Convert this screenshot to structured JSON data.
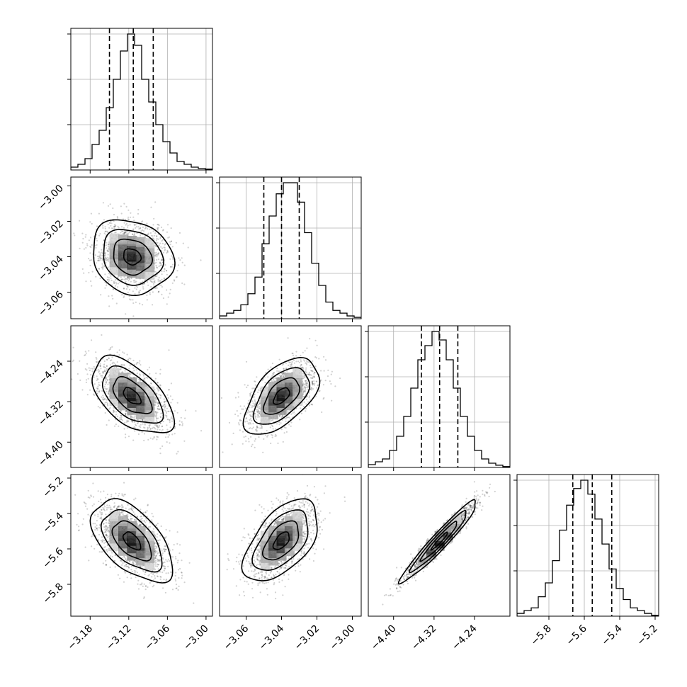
{
  "chart_data": {
    "type": "corner",
    "grid": true,
    "parameters": [
      {
        "range": [
          -3.21,
          -2.99
        ],
        "ticks": [
          -3.18,
          -3.12,
          -3.06,
          -3.0
        ],
        "tick_labels": [
          "−3.18",
          "−3.12",
          "−3.06",
          "−3.00"
        ],
        "quantiles": [
          -3.15,
          -3.113,
          -3.082
        ],
        "mean": -3.115,
        "sigma": 0.03
      },
      {
        "range": [
          -3.075,
          -2.995
        ],
        "ticks": [
          -3.06,
          -3.04,
          -3.02,
          -3.0
        ],
        "tick_labels": [
          "−3.06",
          "−3.04",
          "−3.02",
          "−3.00"
        ],
        "quantiles": [
          -3.05,
          -3.04,
          -3.03
        ],
        "mean": -3.04,
        "sigma": 0.01
      },
      {
        "range": [
          -4.45,
          -4.17
        ],
        "ticks": [
          -4.4,
          -4.32,
          -4.24
        ],
        "tick_labels": [
          "−4.40",
          "−4.32",
          "−4.24"
        ],
        "quantiles": [
          -4.345,
          -4.309,
          -4.273
        ],
        "mean": -4.309,
        "sigma": 0.036
      },
      {
        "range": [
          -5.98,
          -5.18
        ],
        "ticks": [
          -5.8,
          -5.6,
          -5.4,
          -5.2
        ],
        "tick_labels": [
          "−5.8",
          "−5.6",
          "−5.4",
          "−5.2"
        ],
        "quantiles": [
          -5.665,
          -5.555,
          -5.445
        ],
        "mean": -5.555,
        "sigma": 0.11
      }
    ],
    "histograms": [
      [
        1,
        2,
        4,
        9,
        14,
        22,
        32,
        42,
        48,
        44,
        32,
        24,
        16,
        10,
        6,
        3,
        2,
        1,
        0.5,
        0.3
      ],
      [
        1,
        2,
        3,
        5,
        9,
        15,
        27,
        37,
        45,
        49,
        49,
        42,
        31,
        20,
        12,
        6,
        3,
        2,
        1,
        0.5
      ],
      [
        1,
        2,
        3,
        6,
        11,
        18,
        28,
        38,
        43,
        48,
        45,
        38,
        28,
        18,
        11,
        6,
        3,
        1.5,
        0.8,
        0.3
      ],
      [
        1,
        2,
        3,
        7,
        12,
        20,
        31,
        40,
        46,
        49,
        44,
        35,
        26,
        17,
        10,
        6,
        3,
        2,
        1,
        0.3
      ]
    ],
    "correlations": {
      "1-0": -0.15,
      "2-0": -0.55,
      "2-1": 0.55,
      "3-0": -0.55,
      "3-1": 0.55,
      "3-2": 0.96
    }
  }
}
